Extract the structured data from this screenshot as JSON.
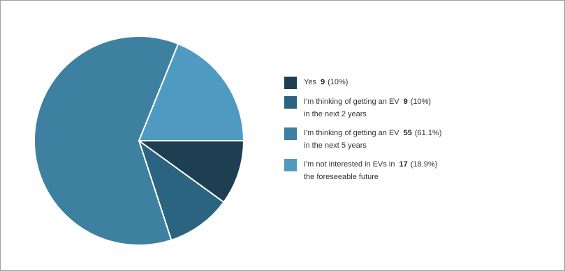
{
  "chart_data": {
    "type": "pie",
    "title": "",
    "legend_position": "right",
    "categories": [
      "Yes",
      "I'm thinking of getting an EV in the next 2 years",
      "I'm thinking of getting an EV in the next 5 years",
      "I'm not interested in EVs in the foreseeable future"
    ],
    "slices": [
      {
        "lines": [
          "Yes"
        ],
        "value": 9,
        "value_label": "9",
        "percent_label": "(10%)",
        "color": "#1e3f52"
      },
      {
        "lines": [
          "I'm thinking of getting an EV",
          "in the next 2 years"
        ],
        "value": 9,
        "value_label": "9",
        "percent_label": "(10%)",
        "color": "#2b6480"
      },
      {
        "lines": [
          "I'm thinking of getting an EV",
          "in the next 5 years"
        ],
        "value": 55,
        "value_label": "55",
        "percent_label": "(61.1%)",
        "color": "#3d80a0"
      },
      {
        "lines": [
          "I'm not interested in EVs in",
          "the foreseeable future"
        ],
        "value": 17,
        "value_label": "17",
        "percent_label": "(18.9%)",
        "color": "#4f9ac1"
      }
    ]
  }
}
